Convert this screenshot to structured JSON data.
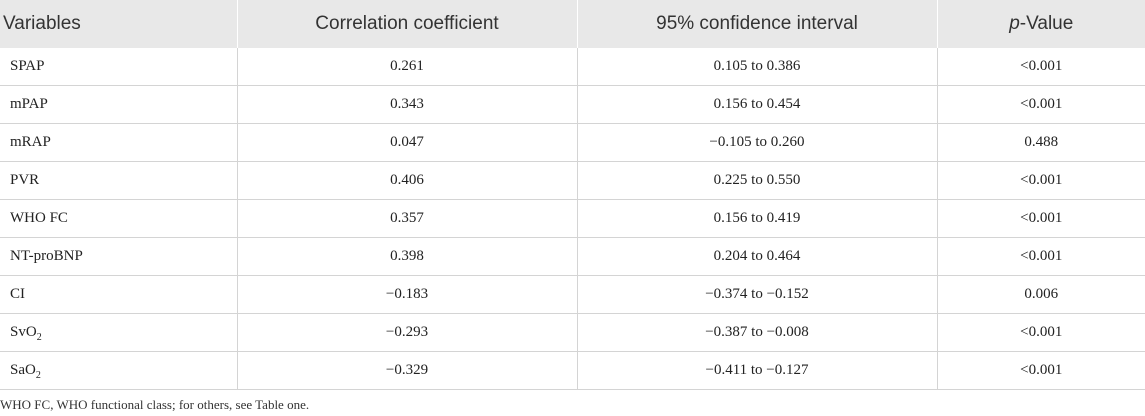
{
  "table": {
    "headers": {
      "variables": "Variables",
      "correlation": "Correlation coefficient",
      "ci": "95% confidence interval",
      "p_italic": "p",
      "p_rest": "-Value"
    },
    "rows": [
      {
        "variable": "SPAP",
        "sub": "",
        "coef": "0.261",
        "ci": "0.105 to 0.386",
        "p": "<0.001"
      },
      {
        "variable": "mPAP",
        "sub": "",
        "coef": "0.343",
        "ci": "0.156 to 0.454",
        "p": "<0.001"
      },
      {
        "variable": "mRAP",
        "sub": "",
        "coef": "0.047",
        "ci": "−0.105 to 0.260",
        "p": "0.488"
      },
      {
        "variable": "PVR",
        "sub": "",
        "coef": "0.406",
        "ci": "0.225 to 0.550",
        "p": "<0.001"
      },
      {
        "variable": "WHO FC",
        "sub": "",
        "coef": "0.357",
        "ci": "0.156 to 0.419",
        "p": "<0.001"
      },
      {
        "variable": "NT-proBNP",
        "sub": "",
        "coef": "0.398",
        "ci": "0.204 to 0.464",
        "p": "<0.001"
      },
      {
        "variable": "CI",
        "sub": "",
        "coef": "−0.183",
        "ci": "−0.374 to −0.152",
        "p": "0.006"
      },
      {
        "variable": "SvO",
        "sub": "2",
        "coef": "−0.293",
        "ci": "−0.387 to −0.008",
        "p": "<0.001"
      },
      {
        "variable": "SaO",
        "sub": "2",
        "coef": "−0.329",
        "ci": "−0.411 to −0.127",
        "p": "<0.001"
      }
    ]
  },
  "footnote": "WHO FC, WHO functional class; for others, see Table one."
}
